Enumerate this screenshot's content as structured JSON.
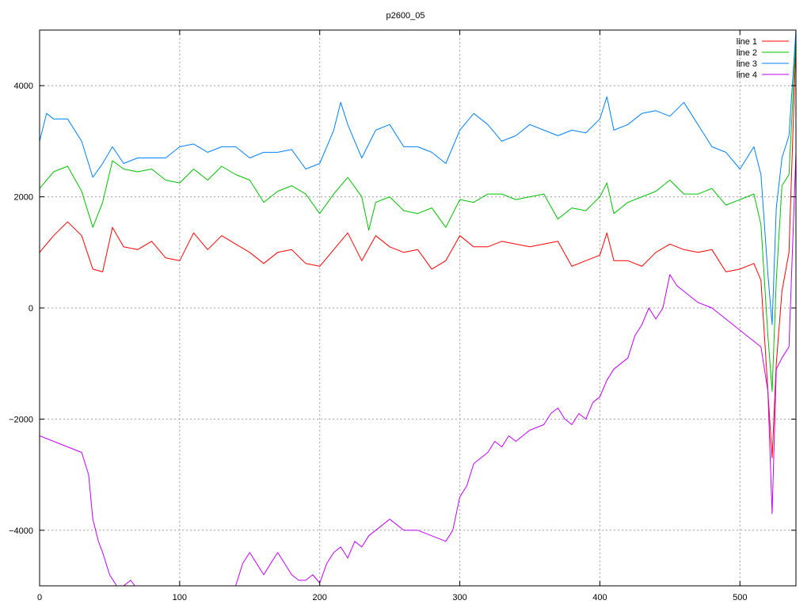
{
  "chart_data": {
    "type": "line",
    "title": "p2600_05",
    "xlabel": "",
    "ylabel": "",
    "xlim": [
      0,
      540
    ],
    "ylim": [
      -5000,
      5000
    ],
    "x_ticks": [
      0,
      100,
      200,
      300,
      400,
      500
    ],
    "y_ticks": [
      -4000,
      -2000,
      0,
      2000,
      4000
    ],
    "y_tick_labels": [
      "−4000",
      "−2000",
      "0",
      "2000",
      "4000"
    ],
    "grid": true,
    "legend_position": "top-right",
    "series": [
      {
        "name": "line 1",
        "color": "#ff0000",
        "x": [
          0,
          10,
          20,
          30,
          38,
          45,
          52,
          60,
          70,
          80,
          90,
          100,
          110,
          120,
          130,
          140,
          150,
          160,
          170,
          180,
          190,
          200,
          210,
          220,
          230,
          240,
          250,
          260,
          270,
          280,
          290,
          300,
          310,
          320,
          330,
          340,
          350,
          360,
          370,
          380,
          390,
          400,
          405,
          410,
          420,
          430,
          440,
          450,
          460,
          470,
          480,
          490,
          500,
          510,
          515,
          520,
          523,
          526,
          530,
          535,
          540
        ],
        "y": [
          1000,
          1300,
          1550,
          1300,
          700,
          650,
          1450,
          1100,
          1050,
          1200,
          900,
          850,
          1350,
          1050,
          1300,
          1150,
          1000,
          800,
          1000,
          1050,
          800,
          750,
          1050,
          1350,
          850,
          1300,
          1100,
          1000,
          1050,
          700,
          850,
          1300,
          1100,
          1100,
          1200,
          1150,
          1100,
          1150,
          1200,
          750,
          850,
          950,
          1350,
          850,
          850,
          750,
          1000,
          1150,
          1050,
          1000,
          1050,
          650,
          700,
          800,
          500,
          -1500,
          -2700,
          -1000,
          300,
          1000,
          4800
        ]
      },
      {
        "name": "line 2",
        "color": "#00c000",
        "x": [
          0,
          10,
          20,
          30,
          38,
          45,
          52,
          60,
          70,
          80,
          90,
          100,
          110,
          120,
          130,
          140,
          150,
          160,
          170,
          180,
          190,
          200,
          210,
          220,
          230,
          235,
          240,
          250,
          260,
          270,
          280,
          290,
          300,
          310,
          320,
          330,
          340,
          350,
          360,
          370,
          380,
          390,
          400,
          405,
          410,
          420,
          430,
          440,
          450,
          460,
          470,
          480,
          490,
          500,
          510,
          515,
          520,
          523,
          526,
          530,
          535,
          540
        ],
        "y": [
          2150,
          2450,
          2550,
          2100,
          1450,
          1900,
          2650,
          2500,
          2450,
          2500,
          2300,
          2250,
          2500,
          2300,
          2550,
          2400,
          2300,
          1900,
          2100,
          2200,
          2050,
          1700,
          2050,
          2350,
          2000,
          1400,
          1900,
          2000,
          1750,
          1700,
          1800,
          1450,
          1950,
          1900,
          2050,
          2050,
          1950,
          2000,
          2050,
          1600,
          1800,
          1750,
          2000,
          2250,
          1700,
          1900,
          2000,
          2100,
          2300,
          2050,
          2050,
          2150,
          1850,
          1950,
          2050,
          1500,
          -500,
          -1500,
          500,
          2200,
          2400,
          4900
        ]
      },
      {
        "name": "line 3",
        "color": "#0080ff",
        "x": [
          0,
          5,
          10,
          20,
          30,
          38,
          45,
          52,
          60,
          70,
          80,
          90,
          100,
          110,
          120,
          130,
          140,
          150,
          160,
          170,
          180,
          190,
          200,
          210,
          215,
          220,
          225,
          230,
          240,
          250,
          260,
          270,
          280,
          290,
          300,
          310,
          320,
          330,
          340,
          350,
          360,
          370,
          380,
          390,
          400,
          405,
          410,
          420,
          430,
          440,
          450,
          460,
          470,
          480,
          490,
          500,
          505,
          510,
          515,
          520,
          523,
          526,
          530,
          535,
          540
        ],
        "y": [
          3000,
          3500,
          3400,
          3400,
          3000,
          2350,
          2600,
          2900,
          2600,
          2700,
          2700,
          2700,
          2900,
          2950,
          2800,
          2900,
          2900,
          2700,
          2800,
          2800,
          2850,
          2500,
          2600,
          3200,
          3700,
          3300,
          3000,
          2700,
          3200,
          3300,
          2900,
          2900,
          2800,
          2600,
          3200,
          3500,
          3300,
          3000,
          3100,
          3300,
          3200,
          3100,
          3200,
          3150,
          3400,
          3800,
          3200,
          3300,
          3500,
          3550,
          3450,
          3700,
          3300,
          2900,
          2800,
          2500,
          2700,
          2900,
          2400,
          600,
          -300,
          1800,
          2700,
          3100,
          5000
        ]
      },
      {
        "name": "line 4",
        "color": "#c000ff",
        "x": [
          0,
          10,
          20,
          30,
          35,
          38,
          42,
          45,
          50,
          55,
          60,
          65,
          68,
          140,
          145,
          150,
          160,
          165,
          170,
          175,
          180,
          185,
          190,
          195,
          200,
          205,
          210,
          215,
          220,
          225,
          230,
          235,
          240,
          245,
          250,
          255,
          260,
          270,
          280,
          290,
          295,
          300,
          305,
          310,
          320,
          325,
          330,
          335,
          340,
          350,
          360,
          365,
          370,
          375,
          380,
          385,
          390,
          395,
          400,
          405,
          410,
          415,
          420,
          425,
          430,
          435,
          440,
          445,
          450,
          455,
          460,
          465,
          470,
          480,
          490,
          500,
          505,
          510,
          515,
          520,
          523,
          526,
          530,
          535,
          540
        ],
        "y": [
          -2300,
          -2400,
          -2500,
          -2600,
          -3000,
          -3800,
          -4200,
          -4400,
          -4800,
          -5000,
          -5000,
          -4900,
          -5000,
          -5000,
          -4600,
          -4400,
          -4800,
          -4600,
          -4400,
          -4600,
          -4800,
          -4900,
          -4900,
          -4800,
          -4950,
          -4600,
          -4400,
          -4300,
          -4500,
          -4200,
          -4300,
          -4100,
          -4000,
          -3900,
          -3800,
          -3900,
          -4000,
          -4000,
          -4100,
          -4200,
          -4000,
          -3400,
          -3200,
          -2800,
          -2600,
          -2400,
          -2500,
          -2300,
          -2400,
          -2200,
          -2100,
          -1900,
          -1800,
          -2000,
          -2100,
          -1900,
          -2000,
          -1700,
          -1600,
          -1300,
          -1100,
          -1000,
          -900,
          -500,
          -300,
          0,
          -200,
          0,
          600,
          400,
          300,
          200,
          100,
          0,
          -200,
          -400,
          -500,
          -600,
          -700,
          -1500,
          -3700,
          -1100,
          -900,
          -700,
          2800
        ]
      }
    ]
  }
}
